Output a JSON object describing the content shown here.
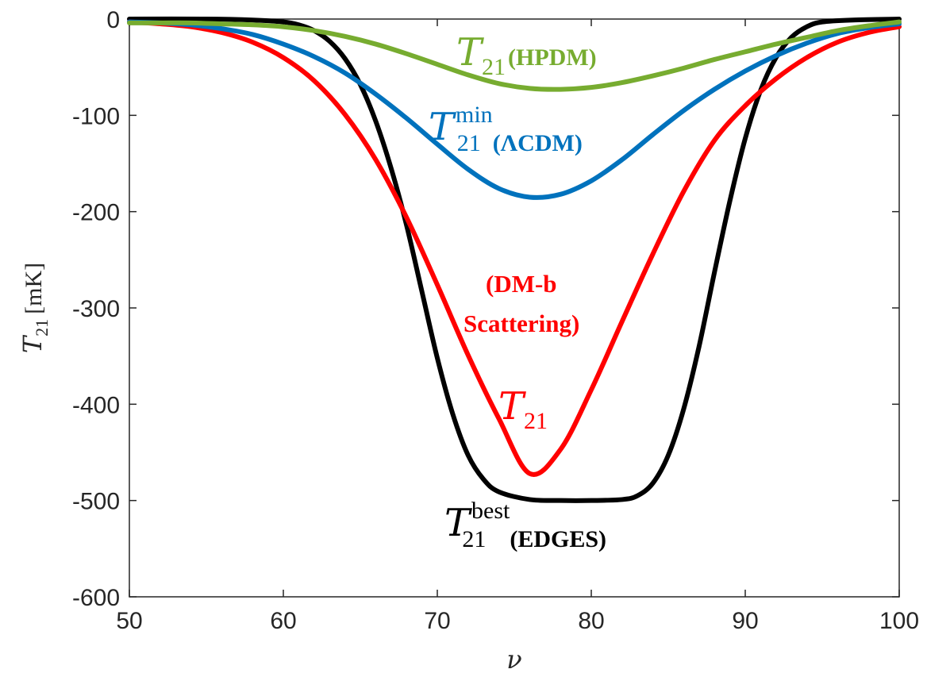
{
  "chart_data": {
    "type": "line",
    "xlabel": "ν",
    "ylabel": {
      "symbol": "T",
      "subscript": "21",
      "unit": "[mK]"
    },
    "xlim": [
      50,
      100
    ],
    "ylim": [
      -600,
      0
    ],
    "xticks": [
      50,
      60,
      70,
      80,
      90,
      100
    ],
    "yticks": [
      0,
      -100,
      -200,
      -300,
      -400,
      -500,
      -600
    ],
    "grid": false,
    "series": [
      {
        "color": "#000000",
        "x": [
          50,
          55,
          58,
          60,
          61,
          62,
          63,
          64,
          65,
          66,
          67,
          68,
          69,
          70,
          71,
          72,
          73,
          74,
          76,
          78,
          80,
          82,
          83,
          84,
          85,
          86,
          87,
          88,
          89,
          90,
          91,
          92,
          93,
          94,
          95,
          97,
          100
        ],
        "y": [
          0,
          0,
          -1,
          -3,
          -6,
          -12,
          -23,
          -41,
          -68,
          -106,
          -155,
          -214,
          -283,
          -352,
          -410,
          -453,
          -478,
          -491,
          -499,
          -500,
          -500,
          -499,
          -495,
          -482,
          -453,
          -405,
          -340,
          -263,
          -189,
          -124,
          -74,
          -40,
          -19,
          -8,
          -3,
          -1,
          0
        ]
      },
      {
        "color": "#ff0000",
        "x": [
          50,
          52,
          54,
          56,
          58,
          60,
          62,
          64,
          66,
          68,
          70,
          72,
          74,
          76,
          78,
          80,
          82,
          84,
          86,
          88,
          90,
          92,
          94,
          96,
          98,
          100
        ],
        "y": [
          -3,
          -5,
          -8,
          -14,
          -24,
          -40,
          -64,
          -99,
          -146,
          -206,
          -276,
          -349,
          -415,
          -472,
          -447,
          -385,
          -314,
          -244,
          -179,
          -126,
          -90,
          -62,
          -40,
          -24,
          -14,
          -8
        ]
      },
      {
        "color": "#0072bd",
        "x": [
          50,
          52,
          54,
          56,
          58,
          60,
          62,
          64,
          66,
          68,
          70,
          72,
          74,
          76,
          78,
          80,
          82,
          84,
          86,
          88,
          90,
          92,
          94,
          96,
          98,
          100
        ],
        "y": [
          -3,
          -4,
          -6,
          -10,
          -16,
          -26,
          -39,
          -56,
          -78,
          -103,
          -130,
          -156,
          -176,
          -185,
          -182,
          -168,
          -146,
          -120,
          -95,
          -73,
          -54,
          -38,
          -25,
          -15,
          -9,
          -5
        ]
      },
      {
        "color": "#77ac30",
        "x": [
          50,
          52,
          54,
          56,
          58,
          60,
          62,
          64,
          66,
          68,
          70,
          72,
          74,
          76,
          78,
          80,
          82,
          84,
          86,
          88,
          90,
          92,
          94,
          96,
          98,
          100
        ],
        "y": [
          -4,
          -4,
          -4,
          -5,
          -6,
          -8,
          -12,
          -18,
          -26,
          -36,
          -47,
          -58,
          -67,
          -72,
          -73,
          -71,
          -66,
          -59,
          -51,
          -42,
          -34,
          -26,
          -19,
          -12,
          -7,
          -3
        ]
      }
    ],
    "annotations": [
      {
        "symbol": "T",
        "subscript": "21",
        "superscript": "",
        "tag": "(HPDM)",
        "color": "#77ac30"
      },
      {
        "symbol": "T",
        "subscript": "21",
        "superscript": "min",
        "tag": "(ΛCDM)",
        "color": "#0072bd"
      },
      {
        "symbol": "",
        "subscript": "",
        "superscript": "",
        "tag": "(DM-b",
        "color": "#ff0000"
      },
      {
        "symbol": "",
        "subscript": "",
        "superscript": "",
        "tag": "Scattering)",
        "color": "#ff0000"
      },
      {
        "symbol": "T",
        "subscript": "21",
        "superscript": "",
        "tag": "",
        "color": "#ff0000"
      },
      {
        "symbol": "T",
        "subscript": "21",
        "superscript": "best",
        "tag": "(EDGES)",
        "color": "#000000"
      }
    ]
  }
}
